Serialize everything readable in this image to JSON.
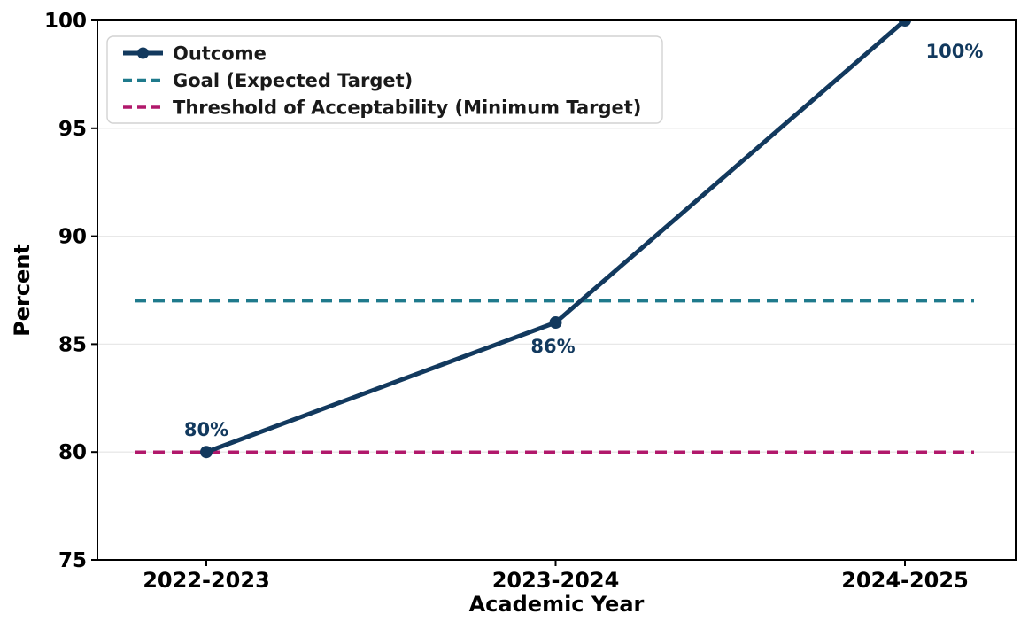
{
  "chart_data": {
    "type": "line",
    "title": "",
    "xlabel": "Academic Year",
    "ylabel": "Percent",
    "ylim": [
      75,
      100
    ],
    "yticks": [
      75,
      80,
      85,
      90,
      95,
      100
    ],
    "categories": [
      "2022-2023",
      "2023-2024",
      "2024-2025"
    ],
    "grid": "horizontal-only",
    "grid_color": "#e8e8e8",
    "legend_position": "upper-left",
    "axis_text_color": "#000000",
    "legend_text_color": "#1a1a1a",
    "series": [
      {
        "name": "Outcome",
        "kind": "line",
        "values": [
          80,
          86,
          100
        ],
        "point_labels": [
          "80%",
          "86%",
          "100%"
        ],
        "color": "#12395e",
        "line_style": "solid",
        "marker": "circle"
      },
      {
        "name": "Goal (Expected Target)",
        "kind": "hline",
        "value": 87,
        "color": "#1f7a8c",
        "line_style": "dashed"
      },
      {
        "name": "Threshold of Acceptability (Minimum Target)",
        "kind": "hline",
        "value": 80,
        "color": "#b1186b",
        "line_style": "dashed"
      }
    ]
  }
}
